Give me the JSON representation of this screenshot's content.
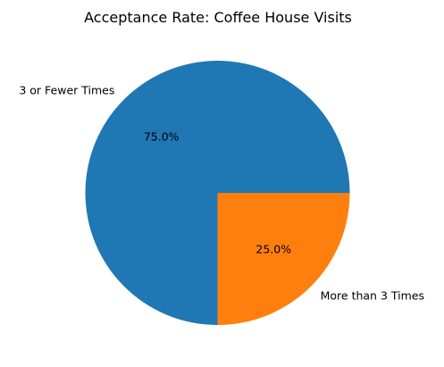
{
  "chart_data": {
    "type": "pie",
    "title": "Acceptance Rate: Coffee House Visits",
    "categories": [
      "3 or Fewer Times",
      "More than 3 Times"
    ],
    "values": [
      75.0,
      25.0
    ],
    "value_labels": [
      "75.0%",
      "25.0%"
    ],
    "colors": [
      "#1f77b4",
      "#ff7f0e"
    ],
    "start_angle_deg": 0,
    "direction": "counterclockwise",
    "legend": "none"
  }
}
